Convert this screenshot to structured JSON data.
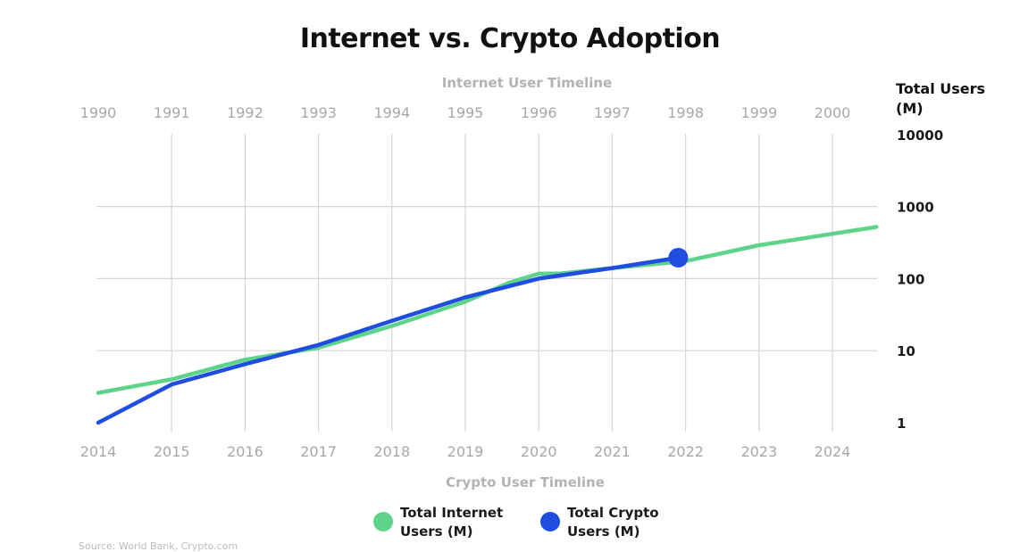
{
  "chart_data": {
    "type": "line",
    "title": "Internet vs. Crypto Adoption",
    "top_axis_title": "Internet User Timeline",
    "bottom_axis_title": "Crypto User Timeline",
    "ylabel": "Total Users (M)",
    "y_scale": "log",
    "ylim": [
      1,
      10000
    ],
    "y_ticks": [
      "1",
      "10",
      "100",
      "1000",
      "10000"
    ],
    "top_x_ticks": [
      "1990",
      "1991",
      "1992",
      "1993",
      "1994",
      "1995",
      "1996",
      "1997",
      "1998",
      "1999",
      "2000"
    ],
    "bottom_x_ticks": [
      "2014",
      "2015",
      "2016",
      "2017",
      "2018",
      "2019",
      "2020",
      "2021",
      "2022",
      "2023",
      "2024"
    ],
    "grid": true,
    "legend_position": "bottom",
    "series": [
      {
        "name": "Total Internet Users (M)",
        "color": "#5dd48a",
        "x": [
          1990,
          1991,
          1992,
          1993,
          1994,
          1995,
          1995.6,
          1996,
          1996.3,
          1997,
          1998,
          1999,
          2000.6
        ],
        "y": [
          2.6,
          4.0,
          7.5,
          11,
          22,
          48,
          88,
          117,
          118,
          140,
          175,
          290,
          520
        ]
      },
      {
        "name": "Total Crypto Users (M)",
        "color": "#1f4de0",
        "x": [
          2014,
          2015,
          2016,
          2017,
          2018,
          2019,
          2020,
          2021,
          2021.9
        ],
        "y": [
          1.0,
          3.4,
          6.5,
          12,
          26,
          55,
          100,
          140,
          195
        ],
        "highlight": {
          "x": 2021.9,
          "y": 195
        }
      }
    ]
  },
  "source_text": "Source: World Bank, Crypto.com"
}
